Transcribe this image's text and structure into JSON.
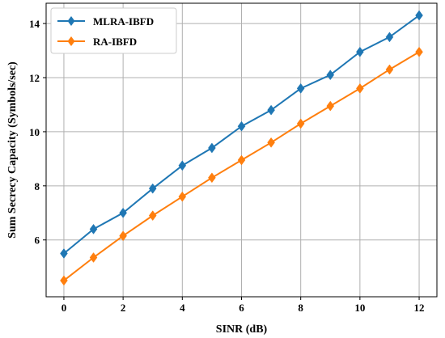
{
  "chart_data": {
    "type": "line",
    "title": "",
    "xlabel": "SINR (dB)",
    "ylabel": "Sum Secrecy Capacity (Symbols/sec)",
    "x": [
      0,
      1,
      2,
      3,
      4,
      5,
      6,
      7,
      8,
      9,
      10,
      11,
      12
    ],
    "xlim": [
      -0.6,
      12.6
    ],
    "ylim": [
      3.9,
      14.75
    ],
    "xticks": [
      0,
      2,
      4,
      6,
      8,
      10,
      12
    ],
    "yticks": [
      6,
      8,
      10,
      12,
      14
    ],
    "grid": true,
    "legend_position": "top-left",
    "series": [
      {
        "name": "MLRA-IBFD",
        "color": "#1f77b4",
        "marker": "diamond",
        "values": [
          5.5,
          6.4,
          7.0,
          7.9,
          8.75,
          9.4,
          10.2,
          10.8,
          11.6,
          12.1,
          12.95,
          13.5,
          14.3
        ]
      },
      {
        "name": "RA-IBFD",
        "color": "#ff7f0e",
        "marker": "diamond",
        "values": [
          4.5,
          5.35,
          6.15,
          6.9,
          7.6,
          8.3,
          8.95,
          9.6,
          10.3,
          10.95,
          11.6,
          12.3,
          12.95
        ]
      }
    ]
  }
}
